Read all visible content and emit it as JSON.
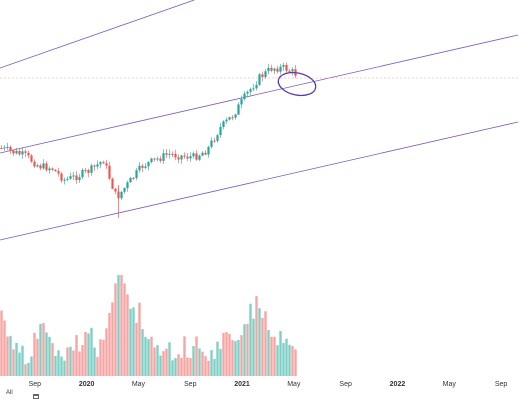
{
  "colors": {
    "up": "#26a69a",
    "down": "#ef5350",
    "up_volume": "#7fcfc7",
    "down_volume": "#f5a5a3",
    "channel_line": "#7e57c2",
    "annotation": "#5b3aa8",
    "reference_line": "#f59f9f"
  },
  "bottom_bar": {
    "range_label": "All",
    "calendar_icon": "calendar-icon"
  },
  "chart_data": {
    "type": "candlestick",
    "interval": "weekly",
    "x_axis_labels": [
      "Sep",
      "2020",
      "May",
      "Sep",
      "2021",
      "May",
      "Sep",
      "2022",
      "May",
      "Sep"
    ],
    "x_range": [
      "2019-06",
      "2022-10"
    ],
    "y_axis_visible": false,
    "grid": false,
    "price_path": [
      {
        "x": "2019-06",
        "y": 148
      },
      {
        "x": "2019-08",
        "y": 156
      },
      {
        "x": "2019-09",
        "y": 166
      },
      {
        "x": "2019-10",
        "y": 168
      },
      {
        "x": "2019-11",
        "y": 180
      },
      {
        "x": "2019-12",
        "y": 176
      },
      {
        "x": "2020-01",
        "y": 170
      },
      {
        "x": "2020-02",
        "y": 160
      },
      {
        "x": "2020-03",
        "y": 198
      },
      {
        "x": "2020-04",
        "y": 182
      },
      {
        "x": "2020-05",
        "y": 166
      },
      {
        "x": "2020-06",
        "y": 160
      },
      {
        "x": "2020-07",
        "y": 154
      },
      {
        "x": "2020-08",
        "y": 156
      },
      {
        "x": "2020-09",
        "y": 157
      },
      {
        "x": "2020-10",
        "y": 150
      },
      {
        "x": "2020-11",
        "y": 128
      },
      {
        "x": "2020-12",
        "y": 115
      },
      {
        "x": "2021-01",
        "y": 95
      },
      {
        "x": "2021-02",
        "y": 78
      },
      {
        "x": "2021-03",
        "y": 68
      },
      {
        "x": "2021-04",
        "y": 68
      },
      {
        "x": "2021-05",
        "y": 75
      }
    ],
    "volume_path": [
      {
        "x": "2019-06",
        "v": 320
      },
      {
        "x": "2019-07",
        "v": 340
      },
      {
        "x": "2019-08",
        "v": 355
      },
      {
        "x": "2019-09",
        "v": 330
      },
      {
        "x": "2019-10",
        "v": 345
      },
      {
        "x": "2019-11",
        "v": 350
      },
      {
        "x": "2019-12",
        "v": 342
      },
      {
        "x": "2020-01",
        "v": 340
      },
      {
        "x": "2020-02",
        "v": 352
      },
      {
        "x": "2020-03",
        "v": 275
      },
      {
        "x": "2020-04",
        "v": 300
      },
      {
        "x": "2020-05",
        "v": 320
      },
      {
        "x": "2020-06",
        "v": 345
      },
      {
        "x": "2020-07",
        "v": 355
      },
      {
        "x": "2020-08",
        "v": 350
      },
      {
        "x": "2020-09",
        "v": 345
      },
      {
        "x": "2020-10",
        "v": 352
      },
      {
        "x": "2020-11",
        "v": 345
      },
      {
        "x": "2020-12",
        "v": 335
      },
      {
        "x": "2021-01",
        "v": 320
      },
      {
        "x": "2021-02",
        "v": 305
      },
      {
        "x": "2021-03",
        "v": 330
      },
      {
        "x": "2021-04",
        "v": 340
      },
      {
        "x": "2021-05",
        "v": 350
      }
    ],
    "channel_lines": [
      {
        "from": {
          "x": "2019-06",
          "y": 68
        },
        "to": {
          "x": "2020-09",
          "y": 0
        }
      },
      {
        "from": {
          "x": "2019-06",
          "y": 153
        },
        "to": {
          "x": "2022-10",
          "y": 35
        }
      },
      {
        "from": {
          "x": "2019-06",
          "y": 240
        },
        "to": {
          "x": "2022-10",
          "y": 122
        }
      }
    ],
    "reference_line": {
      "y": 78
    }
  }
}
